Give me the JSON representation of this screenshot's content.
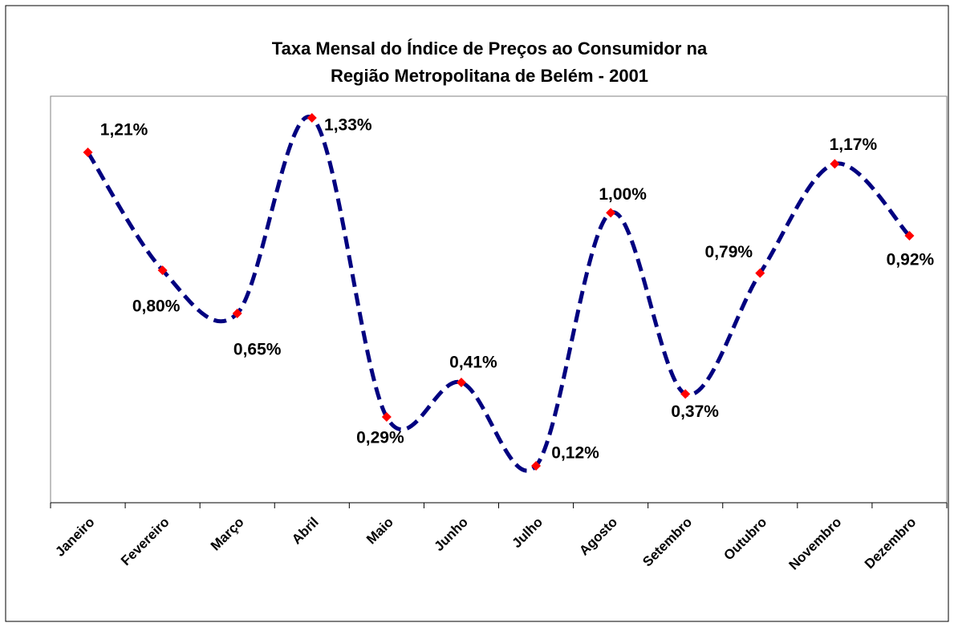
{
  "chart_data": {
    "type": "line",
    "title": [
      "Taxa Mensal do Índice de Preços ao Consumidor na",
      "Região Metropolitana de Belém - 2001"
    ],
    "categories": [
      "Janeiro",
      "Fevereiro",
      "Março",
      "Abril",
      "Maio",
      "Junho",
      "Julho",
      "Agosto",
      "Setembro",
      "Outubro",
      "Novembro",
      "Dezembro"
    ],
    "values": [
      1.21,
      0.8,
      0.65,
      1.33,
      0.29,
      0.41,
      0.12,
      1.0,
      0.37,
      0.79,
      1.17,
      0.92
    ],
    "value_labels": [
      "1,21%",
      "0,80%",
      "0,65%",
      "1,33%",
      "0,29%",
      "0,41%",
      "0,12%",
      "1,00%",
      "0,37%",
      "0,79%",
      "1,17%",
      "0,92%"
    ],
    "color": "#000080",
    "marker_color": "#ff0000",
    "smooth": true,
    "dashed": true
  }
}
